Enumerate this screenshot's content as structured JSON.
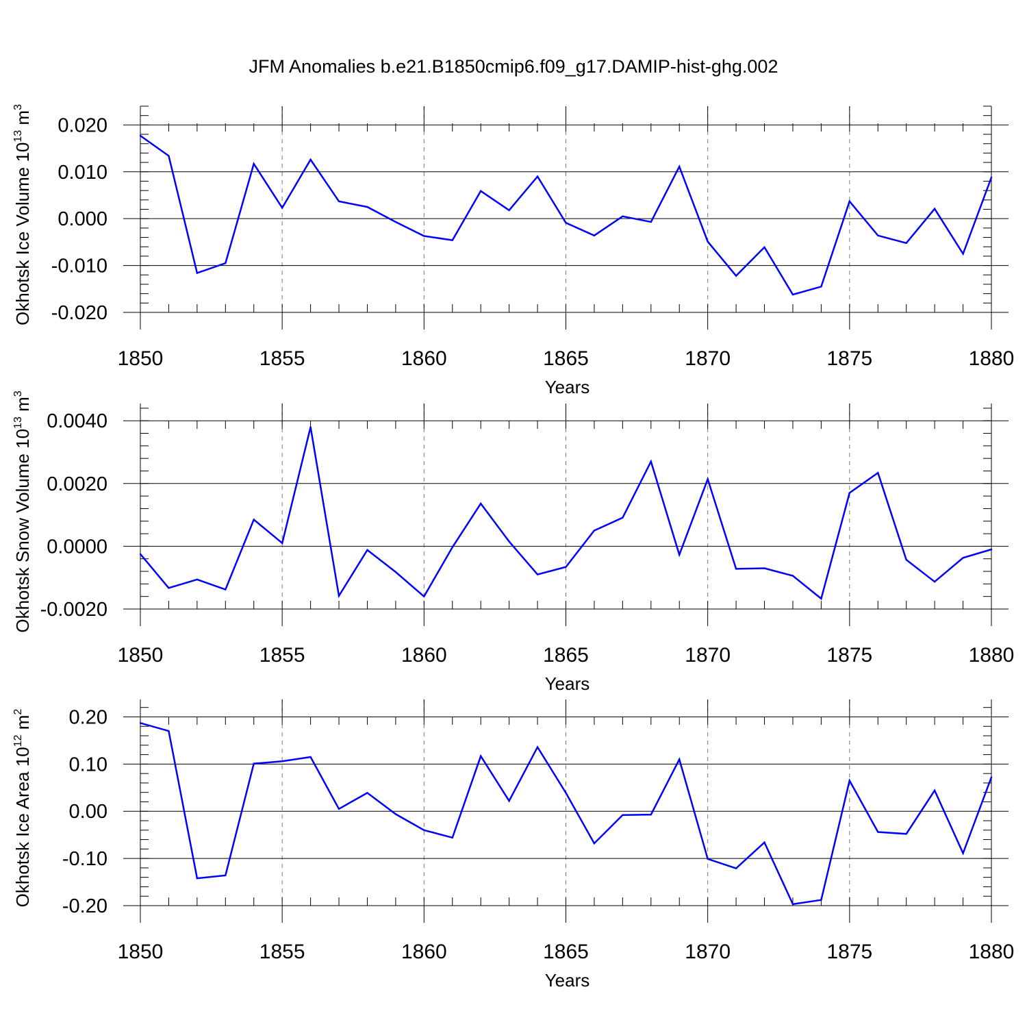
{
  "title": "JFM Anomalies b.e21.B1850cmip6.f09_g17.DAMIP-hist-ghg.002",
  "line_color": "#0000ff",
  "chart_data": [
    {
      "type": "line",
      "ylabel": "Okhotsk Ice Volume 10",
      "ylabel_exp": "13",
      "ylabel_unit": " m",
      "ylabel_unit_exp": "3",
      "xlabel": "Years",
      "xlim": [
        1850,
        1880
      ],
      "ylim": [
        -0.02,
        0.024
      ],
      "xticks": [
        "1850",
        "1855",
        "1860",
        "1865",
        "1870",
        "1875",
        "1880"
      ],
      "yticks": [
        {
          "value": 0.02,
          "label": "0.020"
        },
        {
          "value": 0.01,
          "label": "0.010"
        },
        {
          "value": 0.0,
          "label": "0.000"
        },
        {
          "value": -0.01,
          "label": "-0.010"
        },
        {
          "value": -0.02,
          "label": "-0.020"
        }
      ],
      "x": [
        1850,
        1851,
        1852,
        1853,
        1854,
        1855,
        1856,
        1857,
        1858,
        1859,
        1860,
        1861,
        1862,
        1863,
        1864,
        1865,
        1866,
        1867,
        1868,
        1869,
        1870,
        1871,
        1872,
        1873,
        1874,
        1875,
        1876,
        1877,
        1878,
        1879,
        1880
      ],
      "values": [
        0.0177,
        0.0134,
        -0.0116,
        -0.0095,
        0.0117,
        0.0023,
        0.0126,
        0.0037,
        0.0025,
        -0.0007,
        -0.0037,
        -0.0046,
        0.0059,
        0.0018,
        0.009,
        -0.0009,
        -0.0036,
        0.0005,
        -0.0007,
        0.0111,
        -0.0049,
        -0.0122,
        -0.0061,
        -0.0162,
        -0.0145,
        0.0037,
        -0.0036,
        -0.0052,
        0.0021,
        -0.0075,
        0.0088
      ]
    },
    {
      "type": "line",
      "ylabel": "Okhotsk Snow Volume 10",
      "ylabel_exp": "13",
      "ylabel_unit": " m",
      "ylabel_unit_exp": "3",
      "xlabel": "Years",
      "xlim": [
        1850,
        1880
      ],
      "ylim": [
        -0.002,
        0.00455
      ],
      "xticks": [
        "1850",
        "1855",
        "1860",
        "1865",
        "1870",
        "1875",
        "1880"
      ],
      "yticks": [
        {
          "value": 0.004,
          "label": "0.0040"
        },
        {
          "value": 0.002,
          "label": "0.0020"
        },
        {
          "value": 0.0,
          "label": "0.0000"
        },
        {
          "value": -0.002,
          "label": "-0.0020"
        }
      ],
      "x": [
        1850,
        1851,
        1852,
        1853,
        1854,
        1855,
        1856,
        1857,
        1858,
        1859,
        1860,
        1861,
        1862,
        1863,
        1864,
        1865,
        1866,
        1867,
        1868,
        1869,
        1870,
        1871,
        1872,
        1873,
        1874,
        1875,
        1876,
        1877,
        1878,
        1879,
        1880
      ],
      "values": [
        -0.00025,
        -0.00133,
        -0.00106,
        -0.00138,
        0.00085,
        0.0001,
        0.0038,
        -0.00158,
        -0.00012,
        -0.00082,
        -0.0016,
        -3e-05,
        0.00136,
        0.00015,
        -0.0009,
        -0.00066,
        0.0005,
        0.00091,
        0.0027,
        -0.00027,
        0.00214,
        -0.00072,
        -0.0007,
        -0.00094,
        -0.00167,
        0.0017,
        0.00234,
        -0.00043,
        -0.00113,
        -0.00037,
        -0.0001
      ]
    },
    {
      "type": "line",
      "ylabel": "Okhotsk Ice Area 10",
      "ylabel_exp": "12",
      "ylabel_unit": " m",
      "ylabel_unit_exp": "2",
      "xlabel": "Years",
      "xlim": [
        1850,
        1880
      ],
      "ylim": [
        -0.2,
        0.237
      ],
      "xticks": [
        "1850",
        "1855",
        "1860",
        "1865",
        "1870",
        "1875",
        "1880"
      ],
      "yticks": [
        {
          "value": 0.2,
          "label": "0.20"
        },
        {
          "value": 0.1,
          "label": "0.10"
        },
        {
          "value": 0.0,
          "label": "0.00"
        },
        {
          "value": -0.1,
          "label": "-0.10"
        },
        {
          "value": -0.2,
          "label": "-0.20"
        }
      ],
      "x": [
        1850,
        1851,
        1852,
        1853,
        1854,
        1855,
        1856,
        1857,
        1858,
        1859,
        1860,
        1861,
        1862,
        1863,
        1864,
        1865,
        1866,
        1867,
        1868,
        1869,
        1870,
        1871,
        1872,
        1873,
        1874,
        1875,
        1876,
        1877,
        1878,
        1879,
        1880
      ],
      "values": [
        0.187,
        0.17,
        -0.142,
        -0.136,
        0.101,
        0.106,
        0.115,
        0.005,
        0.039,
        -0.006,
        -0.04,
        -0.056,
        0.117,
        0.022,
        0.136,
        0.039,
        -0.068,
        -0.008,
        -0.007,
        0.11,
        -0.101,
        -0.121,
        -0.066,
        -0.197,
        -0.188,
        0.065,
        -0.044,
        -0.048,
        0.044,
        -0.089,
        0.072
      ]
    }
  ]
}
